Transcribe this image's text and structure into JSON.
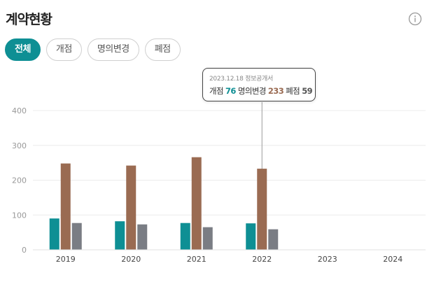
{
  "header": {
    "title": "계약현황"
  },
  "filters": [
    {
      "label": "전체",
      "active": true
    },
    {
      "label": "개점",
      "active": false
    },
    {
      "label": "명의변경",
      "active": false
    },
    {
      "label": "폐점",
      "active": false
    }
  ],
  "tooltip": {
    "header": "2023.12.18 정보공개서",
    "items": [
      {
        "label": "개점",
        "value": "76"
      },
      {
        "label": "명의변경",
        "value": "233"
      },
      {
        "label": "폐점",
        "value": "59"
      }
    ]
  },
  "chart_data": {
    "type": "bar",
    "categories": [
      "2019",
      "2020",
      "2021",
      "2022",
      "2023",
      "2024"
    ],
    "series": [
      {
        "name": "개점",
        "color": "#0e8f94",
        "values": [
          90,
          82,
          77,
          76,
          null,
          null
        ]
      },
      {
        "name": "명의변경",
        "color": "#9a6b52",
        "values": [
          248,
          242,
          266,
          233,
          null,
          null
        ]
      },
      {
        "name": "폐점",
        "color": "#7a7d84",
        "values": [
          77,
          73,
          65,
          59,
          null,
          null
        ]
      }
    ],
    "yticks": [
      0,
      100,
      200,
      300,
      400
    ],
    "ylim": [
      0,
      400
    ],
    "grid": true,
    "highlight_category": "2022"
  }
}
